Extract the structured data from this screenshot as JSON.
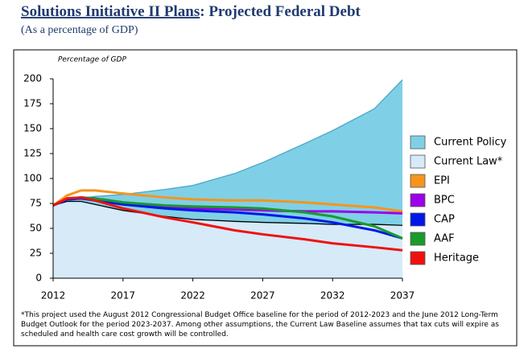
{
  "chart_data": {
    "type": "line",
    "title": [
      "Solutions Initiative II Plans",
      ": Projected Federal Debt"
    ],
    "subtitle": "(As a percentage of GDP)",
    "y_label": "Percentage of GDP",
    "x": [
      2012,
      2013,
      2014,
      2015,
      2017,
      2020,
      2022,
      2025,
      2027,
      2030,
      2032,
      2035,
      2037
    ],
    "xlim": [
      2012,
      2037
    ],
    "xticks": [
      2012,
      2017,
      2022,
      2027,
      2032,
      2037
    ],
    "ylim": [
      0,
      200
    ],
    "yticks": [
      0,
      25,
      50,
      75,
      100,
      125,
      150,
      175,
      200
    ],
    "grid": false,
    "legend": "right",
    "series": [
      {
        "name": "Current Policy",
        "color": "#7fd0e6",
        "kind": "area",
        "values": [
          73,
          77,
          80,
          82,
          84,
          89,
          93,
          105,
          116,
          135,
          148,
          170,
          199
        ]
      },
      {
        "name": "Current Law*",
        "color": "#d6eaf8",
        "kind": "area",
        "values": [
          73,
          77,
          77,
          74,
          68,
          62,
          59,
          57,
          56,
          55,
          54,
          54,
          53
        ]
      },
      {
        "name": "EPI",
        "color": "#f7941d",
        "kind": "line",
        "values": [
          73,
          83,
          88,
          88,
          85,
          81,
          79,
          78,
          78,
          76,
          74,
          71,
          67
        ]
      },
      {
        "name": "BPC",
        "color": "#9b00e8",
        "kind": "line",
        "values": [
          73,
          79,
          81,
          80,
          76,
          72,
          70,
          69,
          68,
          67,
          67,
          66,
          65
        ]
      },
      {
        "name": "CAP",
        "color": "#0018e8",
        "kind": "line",
        "values": [
          73,
          79,
          80,
          78,
          74,
          70,
          68,
          66,
          64,
          60,
          56,
          48,
          40
        ]
      },
      {
        "name": "AAF",
        "color": "#1a9a2a",
        "kind": "line",
        "values": [
          73,
          80,
          81,
          80,
          76,
          73,
          72,
          71,
          70,
          66,
          62,
          52,
          40
        ]
      },
      {
        "name": "Heritage",
        "color": "#f01010",
        "kind": "line",
        "values": [
          73,
          80,
          81,
          78,
          70,
          61,
          56,
          48,
          44,
          39,
          35,
          31,
          28
        ]
      }
    ],
    "footnote": "*This project used the August 2012 Congressional Budget Office baseline for the period of 2012-2023 and the June 2012 Long-Term Budget Outlook for the period 2023-2037. Among other assumptions, the Current Law Baseline assumes that tax cuts will expire as scheduled and health care cost growth will be controlled."
  }
}
